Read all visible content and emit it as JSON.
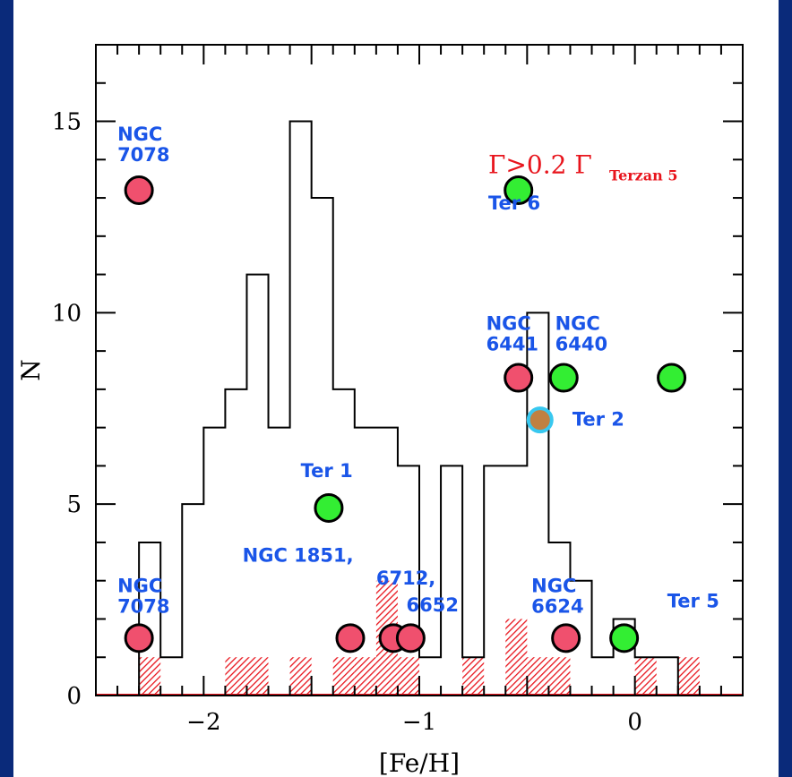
{
  "colors": {
    "frame": "#0a2a7a",
    "annotation": "#1a55e8",
    "red_marker": "#f0506e",
    "green_marker": "#33ee33",
    "special_marker_fill": "#c08040",
    "special_marker_ring": "#38c8f0",
    "hatch": "#e8141c"
  },
  "chart_data": {
    "type": "bar",
    "xlabel": "[Fe/H]",
    "ylabel": "N",
    "xlim": [
      -2.5,
      0.5
    ],
    "ylim": [
      0,
      17
    ],
    "x_ticks": [
      {
        "value": -2,
        "label": "−2"
      },
      {
        "value": -1,
        "label": "−1"
      },
      {
        "value": 0,
        "label": "0"
      }
    ],
    "y_ticks": [
      {
        "value": 0,
        "label": "0"
      },
      {
        "value": 5,
        "label": "5"
      },
      {
        "value": 10,
        "label": "10"
      },
      {
        "value": 15,
        "label": "15"
      }
    ],
    "histogram_all": {
      "bin_width": 0.1,
      "bins": [
        {
          "x0": -2.3,
          "n": 4
        },
        {
          "x0": -2.2,
          "n": 1
        },
        {
          "x0": -2.1,
          "n": 5
        },
        {
          "x0": -2.0,
          "n": 7
        },
        {
          "x0": -1.9,
          "n": 8
        },
        {
          "x0": -1.8,
          "n": 11
        },
        {
          "x0": -1.7,
          "n": 7
        },
        {
          "x0": -1.6,
          "n": 15
        },
        {
          "x0": -1.5,
          "n": 13
        },
        {
          "x0": -1.4,
          "n": 8
        },
        {
          "x0": -1.3,
          "n": 7
        },
        {
          "x0": -1.2,
          "n": 7
        },
        {
          "x0": -1.1,
          "n": 6
        },
        {
          "x0": -1.0,
          "n": 1
        },
        {
          "x0": -0.9,
          "n": 6
        },
        {
          "x0": -0.8,
          "n": 1
        },
        {
          "x0": -0.7,
          "n": 6
        },
        {
          "x0": -0.6,
          "n": 6
        },
        {
          "x0": -0.5,
          "n": 10
        },
        {
          "x0": -0.4,
          "n": 4
        },
        {
          "x0": -0.3,
          "n": 3
        },
        {
          "x0": -0.2,
          "n": 1
        },
        {
          "x0": -0.1,
          "n": 2
        },
        {
          "x0": 0.0,
          "n": 1
        },
        {
          "x0": 0.1,
          "n": 1
        }
      ]
    },
    "histogram_hatched": {
      "bin_width": 0.1,
      "bins": [
        {
          "x0": -2.3,
          "n": 1
        },
        {
          "x0": -1.9,
          "n": 1
        },
        {
          "x0": -1.8,
          "n": 1
        },
        {
          "x0": -1.6,
          "n": 1
        },
        {
          "x0": -1.4,
          "n": 1
        },
        {
          "x0": -1.3,
          "n": 1
        },
        {
          "x0": -1.2,
          "n": 3
        },
        {
          "x0": -1.1,
          "n": 1
        },
        {
          "x0": -0.8,
          "n": 1
        },
        {
          "x0": -0.6,
          "n": 2
        },
        {
          "x0": -0.5,
          "n": 1
        },
        {
          "x0": -0.4,
          "n": 1
        },
        {
          "x0": 0.0,
          "n": 1
        },
        {
          "x0": 0.2,
          "n": 1
        }
      ]
    },
    "markers": [
      {
        "x": -2.3,
        "y": 13.2,
        "color": "red"
      },
      {
        "x": -2.3,
        "y": 1.5,
        "color": "red"
      },
      {
        "x": -1.42,
        "y": 4.9,
        "color": "green"
      },
      {
        "x": -1.32,
        "y": 1.5,
        "color": "red"
      },
      {
        "x": -1.12,
        "y": 1.5,
        "color": "red"
      },
      {
        "x": -1.04,
        "y": 1.5,
        "color": "red"
      },
      {
        "x": -0.54,
        "y": 13.2,
        "color": "green"
      },
      {
        "x": -0.54,
        "y": 8.3,
        "color": "red"
      },
      {
        "x": -0.33,
        "y": 8.3,
        "color": "green"
      },
      {
        "x": -0.44,
        "y": 7.2,
        "color": "special"
      },
      {
        "x": -0.32,
        "y": 1.5,
        "color": "red"
      },
      {
        "x": -0.05,
        "y": 1.5,
        "color": "green"
      },
      {
        "x": 0.17,
        "y": 8.3,
        "color": "green"
      }
    ],
    "annotations": [
      {
        "id": "ngc7078-top",
        "lines": [
          "NGC",
          "7078"
        ],
        "x": -2.4,
        "y": 14.5
      },
      {
        "id": "ter6",
        "lines": [
          "Ter 6"
        ],
        "x": -0.68,
        "y": 12.7
      },
      {
        "id": "ngc6441",
        "lines": [
          "NGC",
          "6441"
        ],
        "x": -0.69,
        "y": 9.55
      },
      {
        "id": "ngc6440",
        "lines": [
          "NGC",
          "6440"
        ],
        "x": -0.37,
        "y": 9.55
      },
      {
        "id": "ter2",
        "lines": [
          "Ter 2"
        ],
        "x": -0.29,
        "y": 7.05
      },
      {
        "id": "ter1",
        "lines": [
          "Ter 1"
        ],
        "x": -1.55,
        "y": 5.7
      },
      {
        "id": "ngc1851",
        "lines": [
          "NGC 1851,"
        ],
        "x": -1.82,
        "y": 3.5
      },
      {
        "id": "ngc6712",
        "lines": [
          "6712,"
        ],
        "x": -1.2,
        "y": 2.9
      },
      {
        "id": "ngc6652",
        "lines": [
          "6652"
        ],
        "x": -1.06,
        "y": 2.2
      },
      {
        "id": "ngc6624",
        "lines": [
          "NGC",
          "6624"
        ],
        "x": -0.48,
        "y": 2.7
      },
      {
        "id": "ngc7078-bottom",
        "lines": [
          "NGC",
          "7078"
        ],
        "x": -2.4,
        "y": 2.7
      },
      {
        "id": "ter5",
        "lines": [
          "Ter 5"
        ],
        "x": 0.15,
        "y": 2.3
      }
    ],
    "gamma_label": {
      "main": "Γ>0.2 Γ",
      "sub": "Terzan 5",
      "x": -0.68,
      "y": 13.65
    }
  }
}
